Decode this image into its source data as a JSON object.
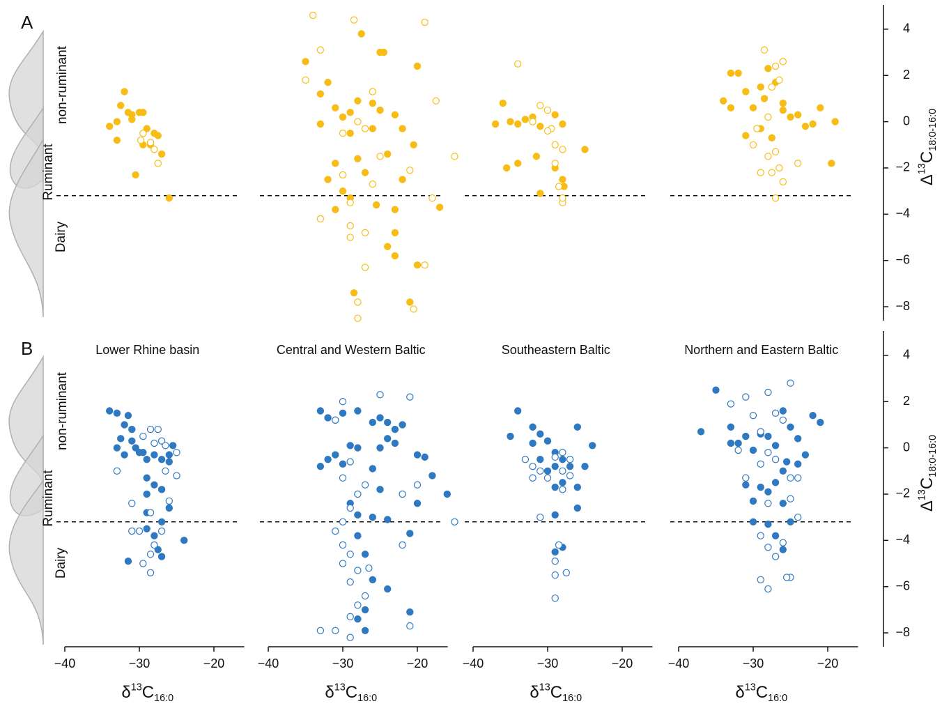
{
  "chart_data": [
    {
      "type": "scatter",
      "panel_label": "A",
      "region_labels": [
        "non-ruminant",
        "Ruminant",
        "Dairy"
      ],
      "xlim": [
        -40,
        -15
      ],
      "ylim": [
        -8.6,
        4.9
      ],
      "hline": -3.2,
      "series": [
        {
          "color": "#f7bd16",
          "filled": true,
          "x": [
            -32,
            -32.5,
            -31.5,
            -31,
            -30,
            -29.5,
            -33,
            -34,
            -31,
            -29,
            -28,
            -27.5,
            -28.5,
            -27,
            -33,
            -30.5,
            -26,
            -29.5
          ],
          "values": [
            1.3,
            0.7,
            0.4,
            0.3,
            0.4,
            0.4,
            0,
            -0.2,
            0.1,
            -0.3,
            -0.5,
            -0.6,
            -1,
            -1.4,
            -0.8,
            -2.3,
            -3.3,
            -1
          ]
        },
        {
          "color": "#f7bd16",
          "filled": false,
          "x": [
            -29.5,
            -29.8,
            -28,
            -27.5,
            -28.5
          ],
          "values": [
            -0.5,
            -0.8,
            -1.2,
            -1.8,
            -0.9
          ]
        }
      ]
    },
    {
      "type": "scatter",
      "xlim": [
        -40,
        -15
      ],
      "ylim": [
        -8.6,
        4.9
      ],
      "hline": -3.2,
      "series": [
        {
          "color": "#f7bd16",
          "filled": true,
          "x": [
            -35,
            -32,
            -33,
            -31,
            -30,
            -29,
            -28,
            -27.5,
            -25,
            -24.5,
            -26,
            -25,
            -23,
            -22,
            -20,
            -20.5,
            -24,
            -28,
            -31,
            -32,
            -30,
            -31,
            -29,
            -27,
            -25.5,
            -23,
            -23,
            -24,
            -23,
            -20,
            -28.5,
            -21,
            -17,
            -22,
            -26,
            -29,
            -33
          ],
          "values": [
            2.6,
            1.7,
            1.2,
            0.6,
            0.2,
            -0.5,
            0.9,
            3.8,
            3,
            3,
            0.8,
            0.5,
            0.3,
            -0.3,
            2.4,
            -1,
            -1.4,
            -1.6,
            -1.8,
            -2.5,
            -3,
            -3.8,
            -3.3,
            -2.2,
            -3.6,
            -3.8,
            -4.8,
            -5.4,
            -5.8,
            -6.2,
            -7.4,
            -7.8,
            -3.7,
            -2.5,
            -0.3,
            0.4,
            -0.1
          ]
        },
        {
          "color": "#f7bd16",
          "filled": false,
          "x": [
            -34,
            -28.5,
            -19,
            -33,
            -35,
            -17.5,
            -26,
            -28,
            -27,
            -30,
            -25,
            -15,
            -30,
            -26,
            -29,
            -33,
            -29,
            -27,
            -29,
            -27,
            -19,
            -28,
            -20.5,
            -28,
            -18,
            -21
          ],
          "values": [
            4.6,
            4.4,
            4.3,
            3.1,
            1.8,
            0.9,
            1.3,
            0,
            -0.3,
            -0.5,
            -1.5,
            -1.5,
            -2.3,
            -2.7,
            -3.5,
            -4.2,
            -4.5,
            -4.8,
            -5,
            -6.3,
            -6.2,
            -7.8,
            -8.1,
            -8.5,
            -3.3,
            -2.1
          ]
        }
      ]
    },
    {
      "type": "scatter",
      "xlim": [
        -40,
        -15
      ],
      "ylim": [
        -8.6,
        4.9
      ],
      "hline": -3.2,
      "series": [
        {
          "color": "#f7bd16",
          "filled": true,
          "x": [
            -36,
            -37,
            -35,
            -34,
            -33,
            -32,
            -31,
            -29,
            -28,
            -35.5,
            -34,
            -31.5,
            -29,
            -28,
            -25,
            -31,
            -27.8
          ],
          "values": [
            0.8,
            -0.1,
            0,
            -0.1,
            0.1,
            0.2,
            -0.2,
            0.3,
            -0.1,
            -2,
            -1.8,
            -1.5,
            -2,
            -2.5,
            -1.2,
            -3.1,
            -2.8
          ]
        },
        {
          "color": "#f7bd16",
          "filled": false,
          "x": [
            -34,
            -31,
            -30,
            -29.5,
            -30,
            -29,
            -28,
            -29,
            -28.5,
            -28,
            -28,
            -32
          ],
          "values": [
            2.5,
            0.7,
            0.5,
            -0.3,
            -0.4,
            -1,
            -1.2,
            -1.8,
            -2.8,
            -3.5,
            -3.3,
            0
          ]
        }
      ]
    },
    {
      "type": "scatter",
      "xlim": [
        -40,
        -15
      ],
      "ylim": [
        -8.6,
        4.9
      ],
      "hline": -3.2,
      "yticks": [
        {
          "value": 4,
          "label": "4"
        },
        {
          "value": 2,
          "label": "2"
        },
        {
          "value": 0,
          "label": "0"
        },
        {
          "value": -2,
          "label": "−2"
        },
        {
          "value": -4,
          "label": "−4"
        },
        {
          "value": -6,
          "label": "−6"
        },
        {
          "value": -8,
          "label": "−8"
        }
      ],
      "y_label": {
        "symbol": "Δ",
        "sup": "13",
        "main": "C",
        "sub": "18:0-16:0"
      },
      "series": [
        {
          "color": "#f7bd16",
          "filled": true,
          "x": [
            -34,
            -33,
            -32,
            -31,
            -30,
            -29,
            -28,
            -27,
            -26,
            -25,
            -24,
            -23,
            -22,
            -21,
            -19,
            -19.5,
            -29,
            -31,
            -27.5,
            -26,
            -28.5,
            -33
          ],
          "values": [
            0.9,
            2.1,
            2.1,
            1.3,
            0.6,
            1.5,
            2.3,
            1.7,
            0.5,
            0.2,
            0.3,
            -0.2,
            -0.1,
            0.6,
            0,
            -1.8,
            -0.3,
            -0.6,
            -0.7,
            0.8,
            1,
            0.6
          ]
        },
        {
          "color": "#f7bd16",
          "filled": false,
          "x": [
            -28.5,
            -26,
            -27,
            -26.5,
            -27.5,
            -28,
            -29.5,
            -30,
            -27,
            -28,
            -26.5,
            -26,
            -27,
            -24,
            -29,
            -27.5
          ],
          "values": [
            3.1,
            2.6,
            2.4,
            1.8,
            1.5,
            0.2,
            -0.3,
            -1,
            -1.3,
            -1.5,
            -2,
            -2.6,
            -3.3,
            -1.8,
            -2.2,
            -2.2
          ]
        }
      ]
    },
    {
      "type": "scatter",
      "panel_label": "B",
      "region_labels": [
        "non-ruminant",
        "Ruminant",
        "Dairy"
      ],
      "title": "Lower Rhine basin",
      "xlim": [
        -40,
        -15
      ],
      "ylim": [
        -8.6,
        4.9
      ],
      "hline": -3.2,
      "xticks": [
        {
          "value": -40,
          "label": "−40"
        },
        {
          "value": -30,
          "label": "−30"
        },
        {
          "value": -20,
          "label": "−20"
        }
      ],
      "x_label": {
        "symbol": "δ",
        "sup": "13",
        "main": "C",
        "sub": "16:0"
      },
      "series": [
        {
          "color": "#2f79c2",
          "filled": true,
          "x": [
            -34,
            -33,
            -31.5,
            -32,
            -31,
            -32.5,
            -31,
            -30.5,
            -33,
            -32,
            -30,
            -29,
            -28,
            -27,
            -26,
            -25.5,
            -26,
            -29,
            -28,
            -29,
            -27,
            -29,
            -27,
            -29,
            -28,
            -27.5,
            -27,
            -31.5,
            -24,
            -26,
            -29.5
          ],
          "values": [
            1.6,
            1.5,
            1.4,
            1,
            0.8,
            0.4,
            0.3,
            0,
            0,
            -0.3,
            -0.2,
            -0.5,
            -0.3,
            -0.5,
            -0.6,
            0.1,
            -0.3,
            -1.3,
            -1.6,
            -2,
            -1.8,
            -2.8,
            -3.2,
            -3.5,
            -3.8,
            -4.4,
            -4.7,
            -4.9,
            -4,
            -2.6,
            -0.2
          ]
        },
        {
          "color": "#2f79c2",
          "filled": false,
          "x": [
            -28.5,
            -27.5,
            -28,
            -27,
            -26.5,
            -25,
            -33,
            -26.5,
            -25,
            -26,
            -31,
            -28.5,
            -31,
            -30,
            -27,
            -28,
            -28.5,
            -29.5,
            -28.5,
            -29.5
          ],
          "values": [
            0.8,
            0.8,
            0.2,
            0.3,
            0.1,
            -0.2,
            -1,
            -1,
            -1.2,
            -2.3,
            -2.4,
            -2.8,
            -3.6,
            -3.6,
            -3.6,
            -4.2,
            -4.6,
            -5,
            -5.4,
            0.5
          ]
        }
      ]
    },
    {
      "type": "scatter",
      "title": "Central and Western Baltic",
      "xlim": [
        -40,
        -15
      ],
      "ylim": [
        -8.6,
        4.9
      ],
      "hline": -3.2,
      "xticks": [
        {
          "value": -40,
          "label": "−40"
        },
        {
          "value": -30,
          "label": "−30"
        },
        {
          "value": -20,
          "label": "−20"
        }
      ],
      "x_label": {
        "symbol": "δ",
        "sup": "13",
        "main": "C",
        "sub": "16:0"
      },
      "series": [
        {
          "color": "#2f79c2",
          "filled": true,
          "x": [
            -33,
            -32,
            -31,
            -30,
            -28,
            -26,
            -25,
            -24,
            -23,
            -22,
            -24,
            -23,
            -25,
            -28,
            -29,
            -31,
            -32,
            -30,
            -26,
            -25,
            -20,
            -19,
            -18,
            -16,
            -20,
            -29,
            -28,
            -26,
            -24,
            -28,
            -27,
            -26,
            -24,
            -27,
            -28,
            -27,
            -21,
            -21,
            -33
          ],
          "values": [
            1.6,
            1.3,
            1.2,
            1.5,
            1.6,
            1.1,
            1.3,
            1.1,
            0.8,
            1,
            0.4,
            0.2,
            0,
            0,
            0.1,
            -0.3,
            -0.5,
            -0.7,
            -0.9,
            -1.8,
            -0.3,
            -0.4,
            -1.2,
            -2,
            -2.4,
            -2.4,
            -2.9,
            -3,
            -3.1,
            -3.8,
            -4.6,
            -5.7,
            -6.1,
            -7,
            -7.4,
            -7.9,
            -7.1,
            -3.7,
            -0.8
          ]
        },
        {
          "color": "#2f79c2",
          "filled": false,
          "x": [
            -30,
            -25,
            -21,
            -31,
            -29,
            -30,
            -27,
            -28,
            -29,
            -30,
            -31,
            -30,
            -29,
            -30,
            -28,
            -29,
            -27,
            -28,
            -29,
            -31,
            -33,
            -29,
            -21,
            -22,
            -22,
            -15,
            -20,
            -26.5
          ],
          "values": [
            2,
            2.3,
            2.2,
            1.2,
            -0.6,
            -1.3,
            -1.6,
            -2,
            -2.6,
            -3.2,
            -3.6,
            -4.2,
            -4.6,
            -5,
            -5.3,
            -5.8,
            -6.4,
            -6.8,
            -7.3,
            -7.9,
            -7.9,
            -8.2,
            -7.7,
            -4.2,
            -2,
            -3.2,
            -1.6,
            -5.2
          ]
        }
      ]
    },
    {
      "type": "scatter",
      "title": "Southeastern Baltic",
      "xlim": [
        -40,
        -15
      ],
      "ylim": [
        -8.6,
        4.9
      ],
      "hline": -3.2,
      "xticks": [
        {
          "value": -40,
          "label": "−40"
        },
        {
          "value": -30,
          "label": "−30"
        },
        {
          "value": -20,
          "label": "−20"
        }
      ],
      "x_label": {
        "symbol": "δ",
        "sup": "13",
        "main": "C",
        "sub": "16:0"
      },
      "series": [
        {
          "color": "#2f79c2",
          "filled": true,
          "x": [
            -34,
            -35,
            -32,
            -31,
            -32,
            -30,
            -29,
            -28,
            -29,
            -30,
            -31,
            -28,
            -29,
            -27,
            -25,
            -26,
            -24,
            -26,
            -26,
            -29,
            -29,
            -28
          ],
          "values": [
            1.6,
            0.5,
            0.9,
            0.6,
            0.2,
            0.3,
            -0.2,
            -0.5,
            -0.8,
            -1,
            -0.5,
            -1.5,
            -1.7,
            -0.8,
            -0.8,
            0.9,
            0.1,
            -1.7,
            -2.6,
            -2.9,
            -4.5,
            -4.3
          ]
        },
        {
          "color": "#2f79c2",
          "filled": false,
          "x": [
            -33,
            -32,
            -31,
            -32,
            -30,
            -29,
            -28,
            -27,
            -28,
            -28,
            -27,
            -31,
            -28.5,
            -29,
            -29,
            -27.5,
            -29
          ],
          "values": [
            -0.5,
            -0.8,
            -1,
            -1.3,
            -1.3,
            -0.4,
            -0.2,
            -0.5,
            -1,
            -1.8,
            -1.2,
            -3,
            -4.2,
            -4.9,
            -5.5,
            -5.4,
            -6.5
          ]
        }
      ]
    },
    {
      "type": "scatter",
      "title": "Northern and Eastern Baltic",
      "xlim": [
        -40,
        -15
      ],
      "ylim": [
        -8.6,
        4.9
      ],
      "hline": -3.2,
      "xticks": [
        {
          "value": -40,
          "label": "−40"
        },
        {
          "value": -30,
          "label": "−30"
        },
        {
          "value": -20,
          "label": "−20"
        }
      ],
      "x_label": {
        "symbol": "δ",
        "sup": "13",
        "main": "C",
        "sub": "16:0"
      },
      "yticks": [
        {
          "value": 4,
          "label": "4"
        },
        {
          "value": 2,
          "label": "2"
        },
        {
          "value": 0,
          "label": "0"
        },
        {
          "value": -2,
          "label": "−2"
        },
        {
          "value": -4,
          "label": "−4"
        },
        {
          "value": -6,
          "label": "−6"
        },
        {
          "value": -8,
          "label": "−8"
        }
      ],
      "y_label": {
        "symbol": "Δ",
        "sup": "13",
        "main": "C",
        "sub": "18:0-16:0"
      },
      "series": [
        {
          "color": "#2f79c2",
          "filled": true,
          "x": [
            -37,
            -35,
            -33,
            -31,
            -32,
            -30,
            -29,
            -28,
            -27,
            -26,
            -25,
            -24,
            -23,
            -22,
            -21,
            -25.5,
            -26,
            -27,
            -28,
            -29,
            -31,
            -30,
            -30,
            -28,
            -26,
            -25,
            -27,
            -26,
            -33,
            -24
          ],
          "values": [
            0.7,
            2.5,
            0.9,
            0.5,
            0.2,
            -0.1,
            0.6,
            0.5,
            0.1,
            1.6,
            0.9,
            0.4,
            -0.3,
            1.4,
            1.1,
            -0.6,
            -1,
            -1.5,
            -1.9,
            -1.7,
            -1.6,
            -2.3,
            -3.2,
            -3.3,
            -2.4,
            -3.2,
            -3.8,
            -4.4,
            0.2,
            -0.7
          ]
        },
        {
          "color": "#2f79c2",
          "filled": false,
          "x": [
            -33,
            -31,
            -30,
            -28,
            -25,
            -27,
            -26,
            -29,
            -32,
            -31,
            -29,
            -28,
            -27,
            -25,
            -24,
            -25,
            -24,
            -28,
            -29,
            -28,
            -27,
            -26,
            -29,
            -28,
            -25,
            -25.5
          ],
          "values": [
            1.9,
            2.2,
            1.4,
            2.4,
            2.8,
            1.5,
            1.2,
            0.7,
            -0.1,
            -1.3,
            -0.7,
            -0.2,
            -0.5,
            -1.3,
            -1.3,
            -2.2,
            -3,
            -2.4,
            -3.8,
            -4.3,
            -4.7,
            -4.1,
            -5.7,
            -6.1,
            -5.6,
            -5.6
          ]
        }
      ]
    }
  ]
}
